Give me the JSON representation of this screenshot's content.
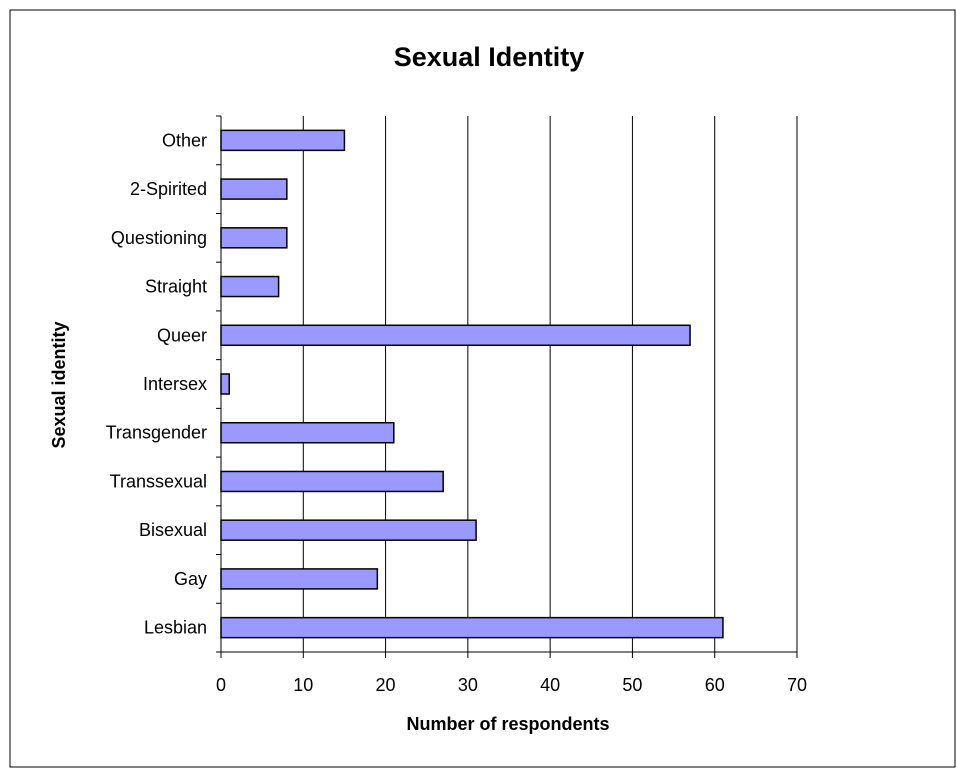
{
  "chart_data": {
    "type": "bar",
    "orientation": "horizontal",
    "title": "Sexual Identity",
    "xlabel": "Number of respondents",
    "ylabel": "Sexual identity",
    "categories": [
      "Lesbian",
      "Gay",
      "Bisexual",
      "Transsexual",
      "Transgender",
      "Intersex",
      "Queer",
      "Straight",
      "Questioning",
      "2-Spirited",
      "Other"
    ],
    "values": [
      61,
      19,
      31,
      27,
      21,
      1,
      57,
      7,
      8,
      8,
      15
    ],
    "xlim": [
      0,
      70
    ],
    "xticks": [
      0,
      10,
      20,
      30,
      40,
      50,
      60,
      70
    ],
    "grid": "vertical",
    "legend": "none",
    "bar_color": "#9999ff",
    "bar_stroke": "#000000"
  }
}
